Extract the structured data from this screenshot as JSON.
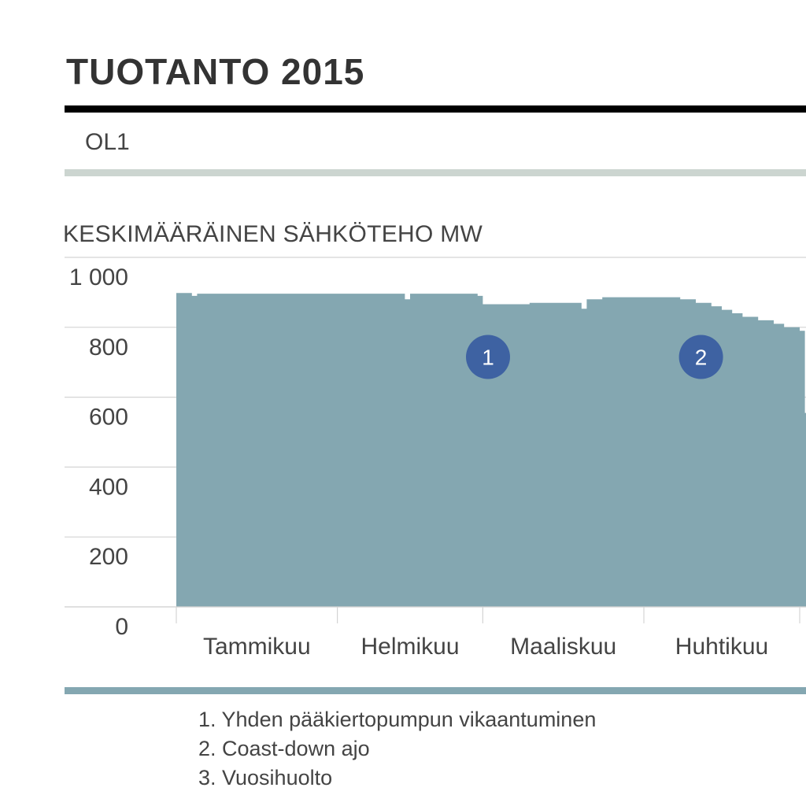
{
  "header": {
    "title": "TUOTANTO 2015",
    "plant": "OL1"
  },
  "chart_data": {
    "type": "area",
    "title": "KESKIMÄÄRÄINEN SÄHKÖTEHO MW",
    "ylabel": "",
    "xlabel": "",
    "ylim": [
      0,
      1000
    ],
    "yticks": [
      {
        "value": 0,
        "label": "0"
      },
      {
        "value": 200,
        "label": "200"
      },
      {
        "value": 400,
        "label": "400"
      },
      {
        "value": 600,
        "label": "600"
      },
      {
        "value": 800,
        "label": "800"
      },
      {
        "value": 1000,
        "label": "1 000"
      }
    ],
    "x_unit": "day_of_year",
    "xlim": [
      1,
      145
    ],
    "categories": [
      "Tammikuu",
      "Helmikuu",
      "Maaliskuu",
      "Huhtikuu"
    ],
    "category_starts": [
      1,
      32,
      60,
      91,
      121
    ],
    "grid": true,
    "color": "#84a7b1",
    "series": [
      {
        "name": "",
        "points": [
          [
            1,
            50
          ],
          [
            1,
            898
          ],
          [
            4,
            898
          ],
          [
            4,
            890
          ],
          [
            5,
            890
          ],
          [
            5,
            896
          ],
          [
            45,
            896
          ],
          [
            45,
            880
          ],
          [
            46,
            880
          ],
          [
            46,
            896
          ],
          [
            59,
            896
          ],
          [
            59,
            890
          ],
          [
            60,
            890
          ],
          [
            60,
            866
          ],
          [
            69,
            866
          ],
          [
            69,
            870
          ],
          [
            79,
            870
          ],
          [
            79,
            853
          ],
          [
            80,
            853
          ],
          [
            80,
            880
          ],
          [
            83,
            880
          ],
          [
            83,
            886
          ],
          [
            98,
            886
          ],
          [
            98,
            880
          ],
          [
            101,
            880
          ],
          [
            101,
            870
          ],
          [
            104,
            870
          ],
          [
            104,
            860
          ],
          [
            106,
            860
          ],
          [
            106,
            850
          ],
          [
            108,
            850
          ],
          [
            108,
            840
          ],
          [
            110,
            840
          ],
          [
            110,
            830
          ],
          [
            113,
            830
          ],
          [
            113,
            820
          ],
          [
            116,
            820
          ],
          [
            116,
            810
          ],
          [
            118,
            810
          ],
          [
            118,
            800
          ],
          [
            121,
            800
          ],
          [
            121,
            790
          ],
          [
            122,
            790
          ],
          [
            122,
            555
          ],
          [
            123,
            555
          ]
        ]
      }
    ],
    "annotations": [
      {
        "label": "1",
        "x": 61,
        "y": 715,
        "color": "#3e62a2"
      },
      {
        "label": "2",
        "x": 102,
        "y": 715,
        "color": "#3e62a2"
      }
    ],
    "notes": [
      "1. Yhden pääkiertopumpun vikaantuminen",
      "2. Coast-down ajo",
      "3. Vuosihuolto"
    ]
  }
}
